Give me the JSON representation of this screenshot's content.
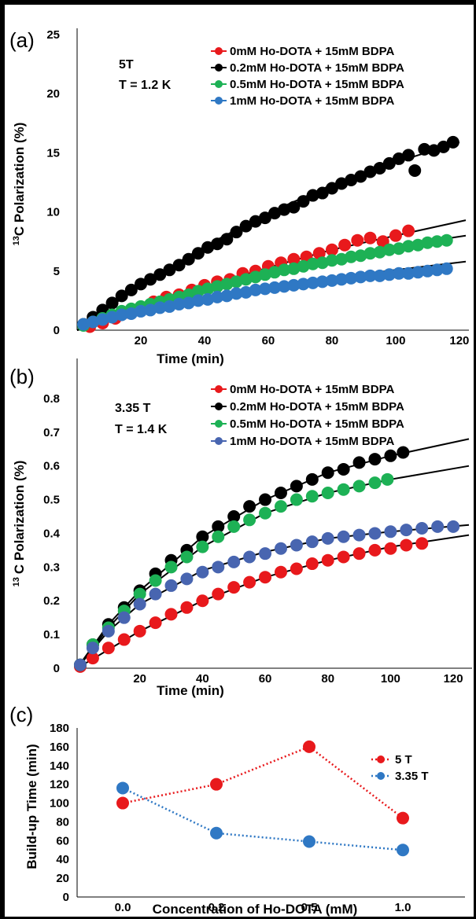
{
  "chart_data": [
    {
      "panel_label": "(a)",
      "type": "scatter",
      "annotations": [
        "5T",
        "T = 1.2 K"
      ],
      "xlabel": "Time (min)",
      "ylabel_sup": "13",
      "ylabel": "C Polarization (%)",
      "xlim": [
        0,
        122
      ],
      "ylim": [
        0,
        25
      ],
      "xticks": [
        "20",
        "40",
        "60",
        "80",
        "100",
        "120"
      ],
      "yticks": [
        "0",
        "5",
        "10",
        "15",
        "20",
        "25"
      ],
      "series": [
        {
          "name": "0mM Ho-DOTA + 15mM BDPA",
          "color": "#e8191c",
          "x": [
            4,
            8,
            12,
            16,
            20,
            24,
            28,
            32,
            36,
            40,
            44,
            48,
            52,
            56,
            60,
            64,
            68,
            72,
            76,
            80,
            84,
            88,
            92,
            96,
            100,
            104
          ],
          "y": [
            0.3,
            0.6,
            1.0,
            1.5,
            1.9,
            2.4,
            2.8,
            3.0,
            3.4,
            3.8,
            4.1,
            4.3,
            4.8,
            5.0,
            5.4,
            5.7,
            6.0,
            6.2,
            6.5,
            6.8,
            7.2,
            7.6,
            7.8,
            7.5,
            8.0,
            8.4
          ],
          "fit": [
            [
              0,
              0
            ],
            [
              20,
              1.9
            ],
            [
              40,
              3.7
            ],
            [
              60,
              5.3
            ],
            [
              80,
              6.8
            ],
            [
              100,
              8.0
            ],
            [
              122,
              9.3
            ]
          ]
        },
        {
          "name": "0.2mM Ho-DOTA + 15mM BDPA",
          "color": "#000000",
          "x": [
            2,
            5,
            8,
            11,
            14,
            17,
            20,
            23,
            26,
            29,
            32,
            35,
            38,
            41,
            44,
            47,
            50,
            53,
            56,
            59,
            62,
            65,
            68,
            71,
            74,
            77,
            80,
            83,
            86,
            89,
            92,
            95,
            98,
            101,
            104,
            106,
            109,
            112,
            115,
            118
          ],
          "y": [
            0.5,
            1.1,
            1.7,
            2.3,
            2.9,
            3.4,
            3.9,
            4.3,
            4.7,
            5.1,
            5.5,
            6.0,
            6.5,
            7.0,
            7.3,
            7.7,
            8.3,
            8.8,
            9.2,
            9.5,
            9.9,
            10.2,
            10.4,
            10.9,
            11.4,
            11.6,
            12.0,
            12.4,
            12.7,
            13.0,
            13.4,
            13.7,
            14.1,
            14.5,
            14.8,
            13.5,
            15.3,
            15.2,
            15.5,
            15.9
          ],
          "fit": [
            [
              0,
              0
            ],
            [
              20,
              3.8
            ],
            [
              40,
              7.1
            ],
            [
              60,
              9.9
            ],
            [
              80,
              12.3
            ],
            [
              100,
              14.2
            ],
            [
              120,
              15.9
            ]
          ]
        },
        {
          "name": "0.5mM Ho-DOTA + 15mM BDPA",
          "color": "#1db155",
          "x": [
            2,
            5,
            8,
            11,
            14,
            17,
            20,
            23,
            26,
            29,
            32,
            35,
            38,
            41,
            44,
            47,
            50,
            53,
            56,
            59,
            62,
            65,
            68,
            71,
            74,
            77,
            80,
            83,
            86,
            89,
            92,
            95,
            98,
            101,
            104,
            107,
            110,
            113,
            116
          ],
          "y": [
            0.4,
            0.7,
            1.0,
            1.3,
            1.6,
            1.8,
            2.0,
            2.2,
            2.4,
            2.6,
            2.8,
            3.0,
            3.3,
            3.5,
            3.7,
            3.9,
            4.1,
            4.3,
            4.5,
            4.7,
            4.9,
            5.1,
            5.2,
            5.4,
            5.6,
            5.7,
            5.9,
            6.0,
            6.2,
            6.3,
            6.5,
            6.6,
            6.8,
            6.9,
            7.1,
            7.2,
            7.4,
            7.5,
            7.6
          ],
          "fit": [
            [
              0,
              0
            ],
            [
              20,
              1.8
            ],
            [
              40,
              3.4
            ],
            [
              60,
              4.8
            ],
            [
              80,
              6.0
            ],
            [
              100,
              7.1
            ],
            [
              122,
              8.0
            ]
          ]
        },
        {
          "name": "1mM Ho-DOTA + 15mM BDPA",
          "color": "#2f78c4",
          "x": [
            2,
            5,
            8,
            11,
            14,
            17,
            20,
            23,
            26,
            29,
            32,
            35,
            38,
            41,
            44,
            47,
            50,
            53,
            56,
            59,
            62,
            65,
            68,
            71,
            74,
            77,
            80,
            83,
            86,
            89,
            92,
            95,
            98,
            101,
            104,
            107,
            110,
            113,
            116
          ],
          "y": [
            0.5,
            0.7,
            0.9,
            1.1,
            1.3,
            1.4,
            1.6,
            1.7,
            1.9,
            2.0,
            2.2,
            2.3,
            2.5,
            2.6,
            2.8,
            2.9,
            3.1,
            3.2,
            3.4,
            3.5,
            3.6,
            3.7,
            3.8,
            3.9,
            4.0,
            4.1,
            4.2,
            4.3,
            4.4,
            4.5,
            4.6,
            4.6,
            4.7,
            4.8,
            4.8,
            4.9,
            5.0,
            5.1,
            5.2
          ],
          "fit": [
            [
              0,
              0
            ],
            [
              20,
              1.4
            ],
            [
              40,
              2.6
            ],
            [
              60,
              3.6
            ],
            [
              80,
              4.4
            ],
            [
              100,
              5.1
            ],
            [
              122,
              5.8
            ]
          ]
        }
      ]
    },
    {
      "panel_label": "(b)",
      "type": "scatter",
      "annotations": [
        "3.35 T",
        "T = 1.4 K"
      ],
      "xlabel": "Time (min)",
      "ylabel_sup": "13",
      "ylabel": "C Polarization (%)",
      "xlim": [
        0,
        125
      ],
      "ylim": [
        0,
        0.9
      ],
      "xticks": [
        "20",
        "40",
        "60",
        "80",
        "100",
        "120"
      ],
      "yticks": [
        "0",
        "0.1",
        "0.2",
        "0.3",
        "0.4",
        "0.5",
        "0.6",
        "0.7",
        "0.8"
      ],
      "series": [
        {
          "name": "0mM Ho-DOTA + 15mM BDPA",
          "color": "#e8191c",
          "x": [
            1,
            5,
            10,
            15,
            20,
            25,
            30,
            35,
            40,
            45,
            50,
            55,
            60,
            65,
            70,
            75,
            80,
            85,
            90,
            95,
            100,
            105,
            110
          ],
          "y": [
            0.005,
            0.03,
            0.06,
            0.085,
            0.11,
            0.135,
            0.16,
            0.18,
            0.2,
            0.22,
            0.24,
            0.255,
            0.27,
            0.285,
            0.295,
            0.31,
            0.32,
            0.33,
            0.34,
            0.35,
            0.355,
            0.365,
            0.37
          ],
          "fit": [
            [
              0,
              0
            ],
            [
              20,
              0.11
            ],
            [
              40,
              0.2
            ],
            [
              60,
              0.27
            ],
            [
              80,
              0.32
            ],
            [
              100,
              0.36
            ],
            [
              125,
              0.395
            ]
          ]
        },
        {
          "name": "0.2mM Ho-DOTA + 15mM BDPA",
          "color": "#000000",
          "x": [
            1,
            5,
            10,
            15,
            20,
            25,
            30,
            35,
            40,
            45,
            50,
            55,
            60,
            65,
            70,
            75,
            80,
            85,
            90,
            95,
            100,
            104
          ],
          "y": [
            0.01,
            0.07,
            0.13,
            0.18,
            0.23,
            0.28,
            0.32,
            0.35,
            0.39,
            0.42,
            0.45,
            0.48,
            0.5,
            0.52,
            0.54,
            0.56,
            0.58,
            0.59,
            0.61,
            0.62,
            0.63,
            0.64
          ],
          "fit": [
            [
              0,
              0
            ],
            [
              10,
              0.13
            ],
            [
              20,
              0.23
            ],
            [
              40,
              0.39
            ],
            [
              60,
              0.5
            ],
            [
              80,
              0.58
            ],
            [
              100,
              0.63
            ],
            [
              125,
              0.68
            ]
          ]
        },
        {
          "name": "0.5mM Ho-DOTA + 15mM BDPA",
          "color": "#1db155",
          "x": [
            1,
            5,
            10,
            15,
            20,
            25,
            30,
            35,
            40,
            45,
            50,
            55,
            60,
            65,
            70,
            75,
            80,
            85,
            90,
            95,
            99
          ],
          "y": [
            0.01,
            0.07,
            0.12,
            0.17,
            0.22,
            0.26,
            0.3,
            0.33,
            0.36,
            0.39,
            0.42,
            0.44,
            0.46,
            0.48,
            0.5,
            0.51,
            0.52,
            0.53,
            0.54,
            0.55,
            0.56
          ],
          "fit": [
            [
              0,
              0
            ],
            [
              10,
              0.12
            ],
            [
              20,
              0.22
            ],
            [
              40,
              0.36
            ],
            [
              60,
              0.46
            ],
            [
              80,
              0.52
            ],
            [
              100,
              0.56
            ],
            [
              125,
              0.6
            ]
          ]
        },
        {
          "name": "1mM Ho-DOTA + 15mM BDPA",
          "color": "#4865b0",
          "x": [
            1,
            5,
            10,
            15,
            20,
            25,
            30,
            35,
            40,
            45,
            50,
            55,
            60,
            65,
            70,
            75,
            80,
            85,
            90,
            95,
            100,
            105,
            110,
            115,
            120
          ],
          "y": [
            0.01,
            0.06,
            0.11,
            0.15,
            0.19,
            0.22,
            0.245,
            0.265,
            0.285,
            0.3,
            0.315,
            0.33,
            0.34,
            0.355,
            0.365,
            0.375,
            0.385,
            0.39,
            0.395,
            0.4,
            0.405,
            0.41,
            0.415,
            0.42,
            0.42
          ],
          "fit": [
            [
              0,
              0
            ],
            [
              10,
              0.11
            ],
            [
              20,
              0.19
            ],
            [
              40,
              0.29
            ],
            [
              60,
              0.345
            ],
            [
              80,
              0.385
            ],
            [
              100,
              0.405
            ],
            [
              125,
              0.425
            ]
          ]
        }
      ]
    },
    {
      "panel_label": "(c)",
      "type": "line",
      "xlabel": "Concentration of Ho-DOTA (mM)",
      "ylabel": "Build-up Time (min)",
      "categories": [
        "0.0",
        "0.2",
        "0.5",
        "1.0"
      ],
      "ylim": [
        0,
        180
      ],
      "yticks": [
        "0",
        "20",
        "40",
        "60",
        "80",
        "100",
        "120",
        "140",
        "160",
        "180"
      ],
      "series": [
        {
          "name": "5 T",
          "color": "#e8191c",
          "values": [
            100,
            120,
            160,
            84
          ]
        },
        {
          "name": "3.35 T",
          "color": "#2f78c4",
          "values": [
            116,
            68,
            59,
            50
          ]
        }
      ]
    }
  ]
}
